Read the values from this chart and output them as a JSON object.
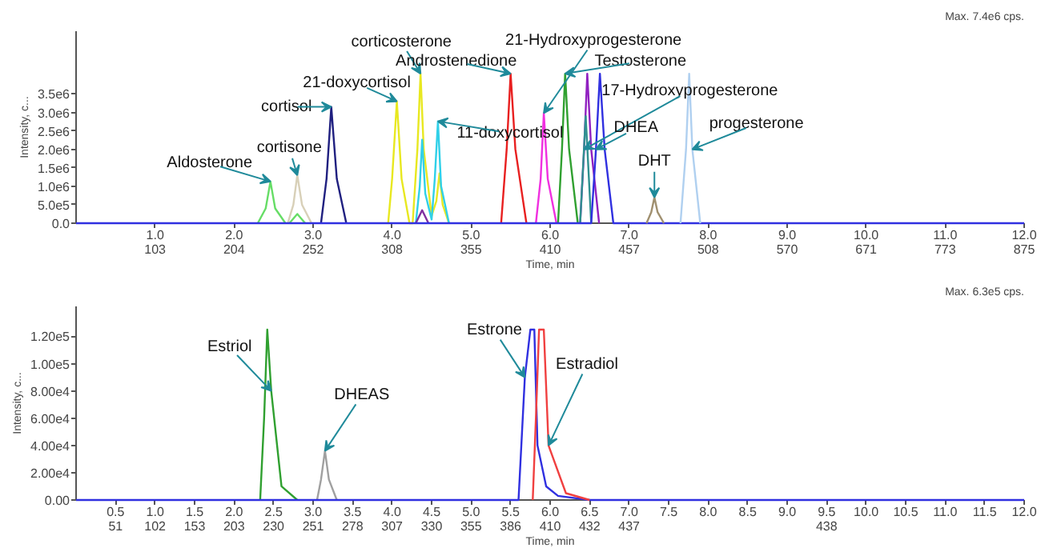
{
  "chart_data": [
    {
      "type": "line",
      "xlabel": "Time, min",
      "ylabel": "Intensity, c...",
      "grid": false,
      "xlim": [
        0,
        12
      ],
      "ylim": [
        0,
        5200000
      ],
      "xticks": [
        {
          "value": 1,
          "label": "1.0"
        },
        {
          "value": 2,
          "label": "2.0"
        },
        {
          "value": 3,
          "label": "3.0"
        },
        {
          "value": 4,
          "label": "4.0"
        },
        {
          "value": 5,
          "label": "5.0"
        },
        {
          "value": 6,
          "label": "6.0"
        },
        {
          "value": 7,
          "label": "7.0"
        },
        {
          "value": 8,
          "label": "8.0"
        },
        {
          "value": 9,
          "label": "9.0"
        },
        {
          "value": 10,
          "label": "10.0"
        },
        {
          "value": 11,
          "label": "11.0"
        },
        {
          "value": 12,
          "label": "12.0"
        }
      ],
      "yticks": [
        {
          "value": 0,
          "label": "0.0"
        },
        {
          "value": 500000,
          "label": "5.0e5"
        },
        {
          "value": 1000000,
          "label": "1.0e6"
        },
        {
          "value": 1500000,
          "label": "1.5e6"
        },
        {
          "value": 2000000,
          "label": "2.0e6"
        },
        {
          "value": 2500000,
          "label": "2.5e6"
        },
        {
          "value": 3000000,
          "label": "3.0e6"
        },
        {
          "value": 3500000,
          "label": "3.5e6"
        }
      ],
      "series": [
        {
          "color": "#66dd66",
          "x": [
            2.3,
            2.4,
            2.46,
            2.52,
            2.65
          ],
          "values": [
            0,
            400000,
            1130000,
            400000,
            0
          ]
        },
        {
          "color": "#66dd66",
          "x": [
            2.7,
            2.8,
            2.9
          ],
          "values": [
            0,
            250000,
            0
          ]
        },
        {
          "color": "#d8d0b8",
          "x": [
            2.68,
            2.75,
            2.8,
            2.86,
            2.98
          ],
          "values": [
            0,
            500000,
            1300000,
            500000,
            0
          ]
        },
        {
          "color": "#202080",
          "x": [
            3.1,
            3.17,
            3.23,
            3.3,
            3.42
          ],
          "values": [
            0,
            1200000,
            3150000,
            1200000,
            0
          ]
        },
        {
          "color": "#e8e820",
          "x": [
            3.95,
            4.0,
            4.06,
            4.12,
            4.22,
            4.26,
            4.32,
            4.36,
            4.4,
            4.5,
            4.56,
            4.6,
            4.64,
            4.72
          ],
          "values": [
            0,
            1200000,
            3300000,
            1200000,
            0,
            0,
            2000000,
            4050000,
            2000000,
            200000,
            600000,
            1350000,
            500000,
            0
          ]
        },
        {
          "color": "#30d0e8",
          "x": [
            4.3,
            4.35,
            4.38,
            4.42,
            4.5,
            4.54,
            4.58,
            4.62,
            4.72
          ],
          "values": [
            0,
            1000000,
            2260000,
            800000,
            100000,
            1200000,
            2760000,
            1000000,
            0
          ]
        },
        {
          "color": "#8030a0",
          "x": [
            4.3,
            4.38,
            4.46
          ],
          "values": [
            0,
            350000,
            0
          ]
        },
        {
          "color": "#e82020",
          "x": [
            5.38,
            5.45,
            5.5,
            5.56,
            5.7
          ],
          "values": [
            0,
            2000000,
            4050000,
            2000000,
            0
          ]
        },
        {
          "color": "#f030e0",
          "x": [
            5.82,
            5.88,
            5.92,
            5.97,
            6.08
          ],
          "values": [
            0,
            1200000,
            2980000,
            1200000,
            0
          ]
        },
        {
          "color": "#30a030",
          "x": [
            6.1,
            6.15,
            6.19,
            6.24,
            6.35
          ],
          "values": [
            0,
            2000000,
            4050000,
            2000000,
            0
          ]
        },
        {
          "color": "#9020c0",
          "x": [
            6.38,
            6.43,
            6.47,
            6.52,
            6.62
          ],
          "values": [
            0,
            2000000,
            4050000,
            2000000,
            0
          ]
        },
        {
          "color": "#309090",
          "x": [
            6.38,
            6.45,
            6.52
          ],
          "values": [
            0,
            2900000,
            0
          ]
        },
        {
          "color": "#3030e0",
          "x": [
            0,
            6.52,
            6.58,
            6.63,
            6.69,
            6.8,
            12
          ],
          "values": [
            0,
            0,
            2000000,
            4050000,
            2000000,
            0,
            0
          ]
        },
        {
          "color": "#a09070",
          "x": [
            7.22,
            7.28,
            7.32,
            7.36,
            7.44
          ],
          "values": [
            0,
            300000,
            700000,
            300000,
            0
          ]
        },
        {
          "color": "#b0d0f0",
          "x": [
            7.65,
            7.72,
            7.76,
            7.8,
            7.9
          ],
          "values": [
            0,
            2000000,
            4050000,
            2000000,
            0
          ]
        }
      ],
      "annotations": [
        "Max. 7.4e6 cps.",
        {
          "text": "Aldosterone",
          "x": 2.46,
          "y": 1130000
        },
        {
          "text": "cortisone",
          "x": 2.8,
          "y": 1300000
        },
        {
          "text": "cortisol",
          "x": 3.23,
          "y": 3150000
        },
        {
          "text": "21-doxycortisol",
          "x": 4.06,
          "y": 3300000
        },
        {
          "text": "corticosterone",
          "x": 4.36,
          "y": 4050000
        },
        {
          "text": "11-doxycortisol",
          "x": 4.58,
          "y": 2760000
        },
        {
          "text": "Androstenedione",
          "x": 5.5,
          "y": 4050000
        },
        {
          "text": "21-Hydroxyprogesterone",
          "x": 5.92,
          "y": 2980000
        },
        {
          "text": "Testosterone",
          "x": 6.19,
          "y": 4050000
        },
        {
          "text": "17-Hydroxyprogesterone",
          "x": 6.43,
          "y": 2000000
        },
        {
          "text": "DHEA",
          "x": 6.58,
          "y": 2000000
        },
        {
          "text": "DHT",
          "x": 7.32,
          "y": 700000
        },
        {
          "text": "progesterone",
          "x": 7.8,
          "y": 2000000
        },
        {
          "text": "103",
          "x": 1,
          "y": 0
        },
        {
          "text": "204",
          "x": 2,
          "y": 0
        },
        {
          "text": "252",
          "x": 3,
          "y": 0
        },
        {
          "text": "308",
          "x": 4,
          "y": 0
        },
        {
          "text": "355",
          "x": 5,
          "y": 0
        },
        {
          "text": "410",
          "x": 6,
          "y": 0
        },
        {
          "text": "457",
          "x": 7,
          "y": 0
        },
        {
          "text": "508",
          "x": 8,
          "y": 0
        },
        {
          "text": "570",
          "x": 9,
          "y": 0
        },
        {
          "text": "671",
          "x": 10,
          "y": 0
        },
        {
          "text": "773",
          "x": 11,
          "y": 0
        },
        {
          "text": "875",
          "x": 12,
          "y": 0
        }
      ]
    },
    {
      "type": "line",
      "xlabel": "Time, min",
      "ylabel": "Intensity, c...",
      "grid": false,
      "xlim": [
        0,
        12
      ],
      "ylim": [
        0,
        142000
      ],
      "xticks": [
        {
          "value": 0.5,
          "label": "0.5"
        },
        {
          "value": 1,
          "label": "1.0"
        },
        {
          "value": 1.5,
          "label": "1.5"
        },
        {
          "value": 2,
          "label": "2.0"
        },
        {
          "value": 2.5,
          "label": "2.5"
        },
        {
          "value": 3,
          "label": "3.0"
        },
        {
          "value": 3.5,
          "label": "3.5"
        },
        {
          "value": 4,
          "label": "4.0"
        },
        {
          "value": 4.5,
          "label": "4.5"
        },
        {
          "value": 5,
          "label": "5.0"
        },
        {
          "value": 5.5,
          "label": "5.5"
        },
        {
          "value": 6,
          "label": "6.0"
        },
        {
          "value": 6.5,
          "label": "6.5"
        },
        {
          "value": 7,
          "label": "7.0"
        },
        {
          "value": 7.5,
          "label": "7.5"
        },
        {
          "value": 8,
          "label": "8.0"
        },
        {
          "value": 8.5,
          "label": "8.5"
        },
        {
          "value": 9,
          "label": "9.0"
        },
        {
          "value": 9.5,
          "label": "9.5"
        },
        {
          "value": 10,
          "label": "10.0"
        },
        {
          "value": 10.5,
          "label": "10.5"
        },
        {
          "value": 11,
          "label": "11.0"
        },
        {
          "value": 11.5,
          "label": "11.5"
        },
        {
          "value": 12,
          "label": "12.0"
        }
      ],
      "yticks": [
        {
          "value": 0,
          "label": "0.00"
        },
        {
          "value": 20000,
          "label": "2.00e4"
        },
        {
          "value": 40000,
          "label": "4.00e4"
        },
        {
          "value": 60000,
          "label": "6.00e4"
        },
        {
          "value": 80000,
          "label": "8.00e4"
        },
        {
          "value": 100000,
          "label": "1.00e5"
        },
        {
          "value": 120000,
          "label": "1.20e5"
        }
      ],
      "series": [
        {
          "color": "#30a030",
          "x": [
            2.33,
            2.38,
            2.42,
            2.47,
            2.6,
            2.8
          ],
          "values": [
            0,
            60000,
            125000,
            80000,
            10000,
            0
          ]
        },
        {
          "color": "#a0a0a0",
          "x": [
            3.05,
            3.1,
            3.15,
            3.2,
            3.3
          ],
          "values": [
            0,
            15000,
            36000,
            15000,
            0
          ]
        },
        {
          "color": "#3030e0",
          "x": [
            0,
            5.6,
            5.68,
            5.75,
            5.8,
            5.84,
            5.95,
            6.1,
            6.5,
            12
          ],
          "values": [
            0,
            0,
            90000,
            125000,
            125000,
            40000,
            10000,
            3000,
            0,
            0
          ]
        },
        {
          "color": "#f04040",
          "x": [
            5.78,
            5.82,
            5.86,
            5.92,
            5.98,
            6.2,
            6.5
          ],
          "values": [
            0,
            60000,
            125000,
            125000,
            40000,
            5000,
            0
          ]
        }
      ],
      "annotations": [
        "Max. 6.3e5 cps.",
        {
          "text": "Estriol",
          "x": 2.47,
          "y": 80000
        },
        {
          "text": "DHEAS",
          "x": 3.15,
          "y": 36000
        },
        {
          "text": "Estrone",
          "x": 5.68,
          "y": 90000
        },
        {
          "text": "Estradiol",
          "x": 5.98,
          "y": 40000
        },
        {
          "text": "51",
          "x": 0.5,
          "y": 0
        },
        {
          "text": "102",
          "x": 1,
          "y": 0
        },
        {
          "text": "153",
          "x": 1.5,
          "y": 0
        },
        {
          "text": "203",
          "x": 2,
          "y": 0
        },
        {
          "text": "230",
          "x": 2.5,
          "y": 0
        },
        {
          "text": "251",
          "x": 3,
          "y": 0
        },
        {
          "text": "278",
          "x": 3.5,
          "y": 0
        },
        {
          "text": "307",
          "x": 4,
          "y": 0
        },
        {
          "text": "330",
          "x": 4.5,
          "y": 0
        },
        {
          "text": "355",
          "x": 5,
          "y": 0
        },
        {
          "text": "386",
          "x": 5.5,
          "y": 0
        },
        {
          "text": "410",
          "x": 6,
          "y": 0
        },
        {
          "text": "432",
          "x": 6.5,
          "y": 0
        },
        {
          "text": "437",
          "x": 7,
          "y": 0
        },
        {
          "text": "438",
          "x": 9.5,
          "y": 0
        }
      ]
    }
  ]
}
